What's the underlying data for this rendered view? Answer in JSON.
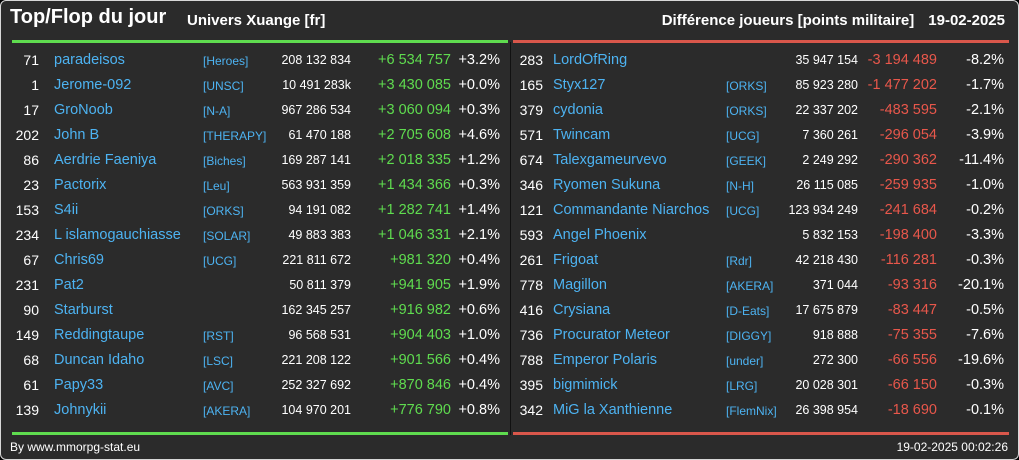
{
  "header": {
    "title": "Top/Flop du jour",
    "universe": "Univers Xuange [fr]",
    "metric": "Différence joueurs [points militaire]",
    "date": "19-02-2025"
  },
  "colors": {
    "background": "#2b2b2b",
    "name": "#4db3f2",
    "gain": "#5fdc4f",
    "loss": "#e8574b"
  },
  "top": [
    {
      "rank": "71",
      "name": "paradeisos",
      "alliance": "[Heroes]",
      "points": "208 132 834",
      "diff": "+6 534 757",
      "pct": "+3.2%"
    },
    {
      "rank": "1",
      "name": "Jerome-092",
      "alliance": "[UNSC]",
      "points": "10 491 283k",
      "diff": "+3 430 085",
      "pct": "+0.0%"
    },
    {
      "rank": "17",
      "name": "GroNoob",
      "alliance": "[N-A]",
      "points": "967 286 534",
      "diff": "+3 060 094",
      "pct": "+0.3%"
    },
    {
      "rank": "202",
      "name": "John B",
      "alliance": "[THERAPY]",
      "points": "61 470 188",
      "diff": "+2 705 608",
      "pct": "+4.6%"
    },
    {
      "rank": "86",
      "name": "Aerdrie Faeniya",
      "alliance": "[Biches]",
      "points": "169 287 141",
      "diff": "+2 018 335",
      "pct": "+1.2%"
    },
    {
      "rank": "23",
      "name": "Pactorix",
      "alliance": "[Leu]",
      "points": "563 931 359",
      "diff": "+1 434 366",
      "pct": "+0.3%"
    },
    {
      "rank": "153",
      "name": "S4ii",
      "alliance": "[ORKS]",
      "points": "94 191 082",
      "diff": "+1 282 741",
      "pct": "+1.4%"
    },
    {
      "rank": "234",
      "name": "L islamogauchiasse",
      "alliance": "[SOLAR]",
      "points": "49 883 383",
      "diff": "+1 046 331",
      "pct": "+2.1%"
    },
    {
      "rank": "67",
      "name": "Chris69",
      "alliance": "[UCG]",
      "points": "221 811 672",
      "diff": "+981 320",
      "pct": "+0.4%"
    },
    {
      "rank": "231",
      "name": "Pat2",
      "alliance": "",
      "points": "50 811 379",
      "diff": "+941 905",
      "pct": "+1.9%"
    },
    {
      "rank": "90",
      "name": "Starburst",
      "alliance": "",
      "points": "162 345 257",
      "diff": "+916 982",
      "pct": "+0.6%"
    },
    {
      "rank": "149",
      "name": "Reddingtaupe",
      "alliance": "[RST]",
      "points": "96 568 531",
      "diff": "+904 403",
      "pct": "+1.0%"
    },
    {
      "rank": "68",
      "name": "Duncan Idaho",
      "alliance": "[LSC]",
      "points": "221 208 122",
      "diff": "+901 566",
      "pct": "+0.4%"
    },
    {
      "rank": "61",
      "name": "Papy33",
      "alliance": "[AVC]",
      "points": "252 327 692",
      "diff": "+870 846",
      "pct": "+0.4%"
    },
    {
      "rank": "139",
      "name": "Johnykii",
      "alliance": "[AKERA]",
      "points": "104 970 201",
      "diff": "+776 790",
      "pct": "+0.8%"
    }
  ],
  "flop": [
    {
      "rank": "283",
      "name": "LordOfRing",
      "alliance": "",
      "points": "35 947 154",
      "diff": "-3 194 489",
      "pct": "-8.2%"
    },
    {
      "rank": "165",
      "name": "Styx127",
      "alliance": "[ORKS]",
      "points": "85 923 280",
      "diff": "-1 477 202",
      "pct": "-1.7%"
    },
    {
      "rank": "379",
      "name": "cydonia",
      "alliance": "[ORKS]",
      "points": "22 337 202",
      "diff": "-483 595",
      "pct": "-2.1%"
    },
    {
      "rank": "571",
      "name": "Twincam",
      "alliance": "[UCG]",
      "points": "7 360 261",
      "diff": "-296 054",
      "pct": "-3.9%"
    },
    {
      "rank": "674",
      "name": "Talexgameurvevo",
      "alliance": "[GEEK]",
      "points": "2 249 292",
      "diff": "-290 362",
      "pct": "-11.4%"
    },
    {
      "rank": "346",
      "name": "Ryomen Sukuna",
      "alliance": "[N-H]",
      "points": "26 115 085",
      "diff": "-259 935",
      "pct": "-1.0%"
    },
    {
      "rank": "121",
      "name": "Commandante Niarchos",
      "alliance": "[UCG]",
      "points": "123 934 249",
      "diff": "-241 684",
      "pct": "-0.2%"
    },
    {
      "rank": "593",
      "name": "Angel Phoenix",
      "alliance": "",
      "points": "5 832 153",
      "diff": "-198 400",
      "pct": "-3.3%"
    },
    {
      "rank": "261",
      "name": "Frigoat",
      "alliance": "[Rdr]",
      "points": "42 218 430",
      "diff": "-116 281",
      "pct": "-0.3%"
    },
    {
      "rank": "778",
      "name": "Magillon",
      "alliance": "[AKERA]",
      "points": "371 044",
      "diff": "-93 316",
      "pct": "-20.1%"
    },
    {
      "rank": "416",
      "name": "Crysiana",
      "alliance": "[D-Eats]",
      "points": "17 675 879",
      "diff": "-83 447",
      "pct": "-0.5%"
    },
    {
      "rank": "736",
      "name": "Procurator Meteor",
      "alliance": "[DIGGY]",
      "points": "918 888",
      "diff": "-75 355",
      "pct": "-7.6%"
    },
    {
      "rank": "788",
      "name": "Emperor Polaris",
      "alliance": "[under]",
      "points": "272 300",
      "diff": "-66 556",
      "pct": "-19.6%"
    },
    {
      "rank": "395",
      "name": "bigmimick",
      "alliance": "[LRG]",
      "points": "20 028 301",
      "diff": "-66 150",
      "pct": "-0.3%"
    },
    {
      "rank": "342",
      "name": "MiG la Xanthienne",
      "alliance": "[FlemNix]",
      "points": "26 398 954",
      "diff": "-18 690",
      "pct": "-0.1%"
    }
  ],
  "footer": {
    "source": "By www.mmorpg-stat.eu",
    "timestamp": "19-02-2025 00:02:26"
  }
}
